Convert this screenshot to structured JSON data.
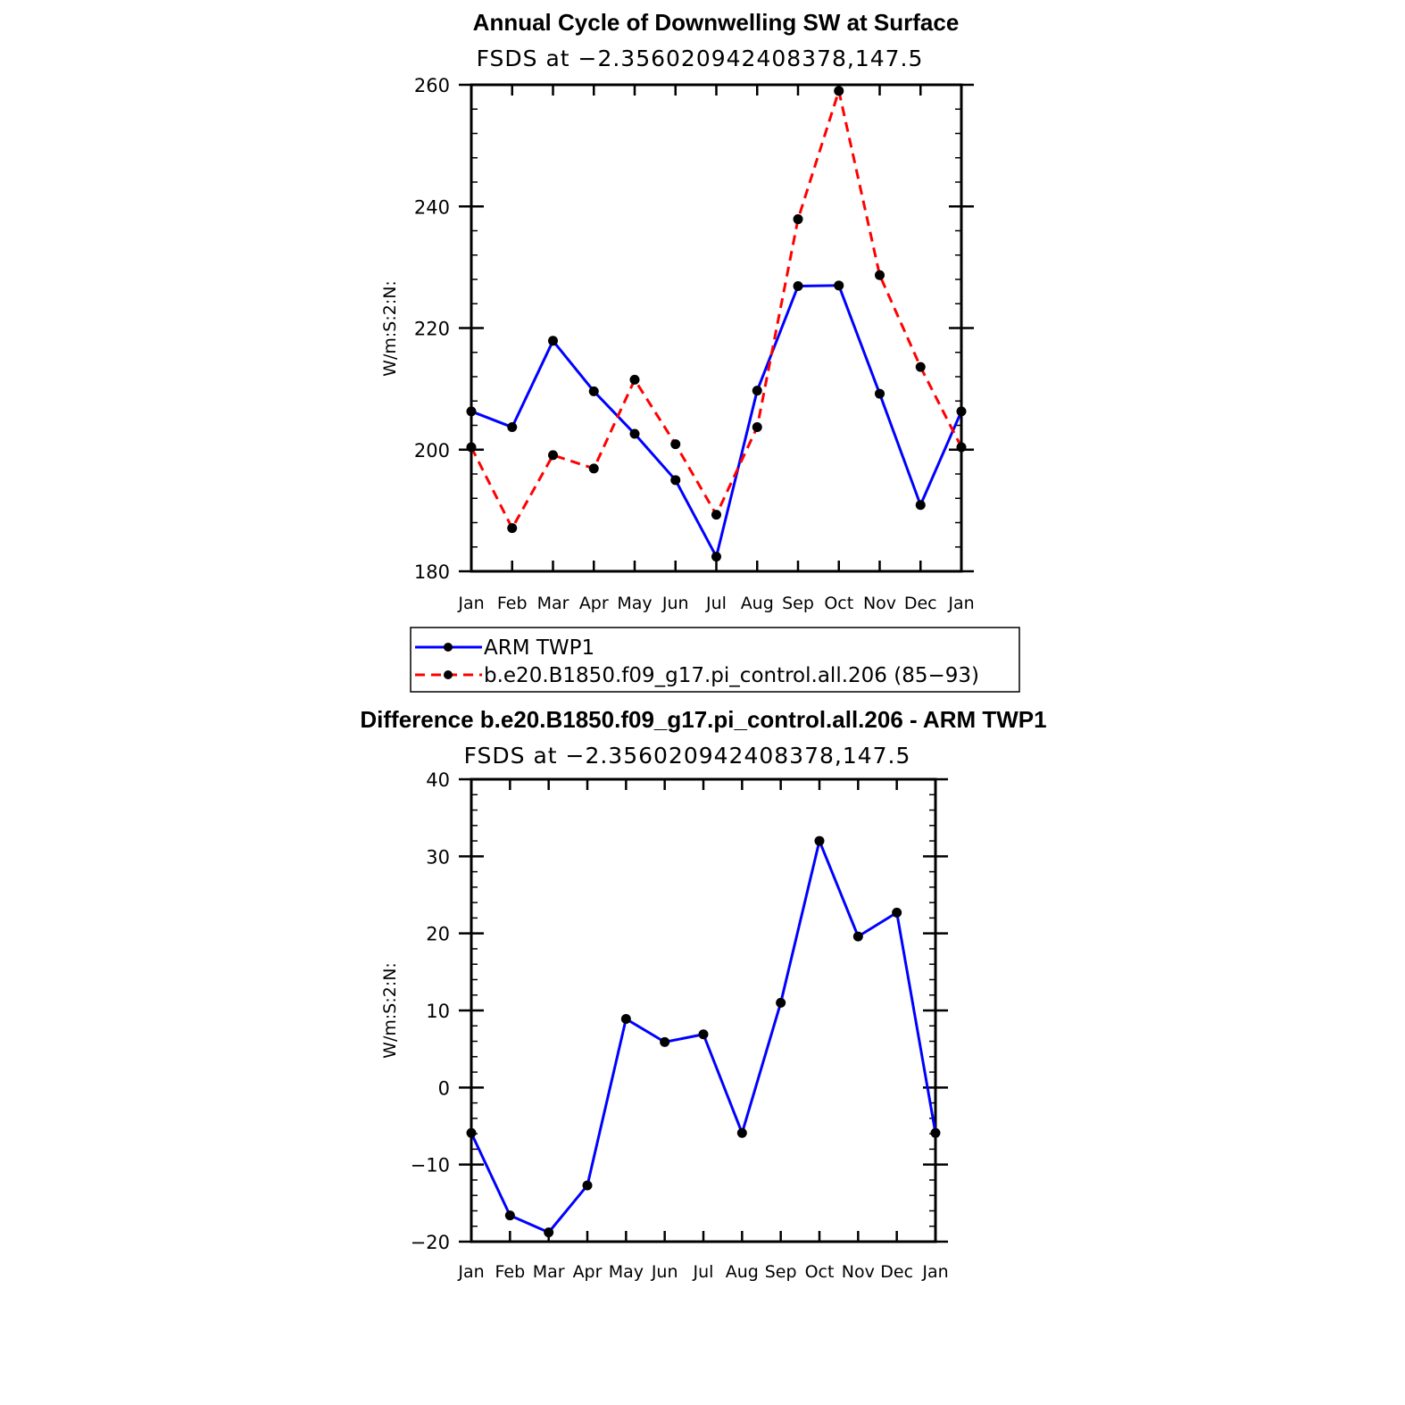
{
  "chart_data": [
    {
      "type": "line",
      "title": "Annual Cycle of Downwelling SW at Surface",
      "subtitle": "FSDS at −2.356020942408378,147.5",
      "xlabel": "",
      "ylabel": "W/m:S:2:N:",
      "categories": [
        "Jan",
        "Feb",
        "Mar",
        "Apr",
        "May",
        "Jun",
        "Jul",
        "Aug",
        "Sep",
        "Oct",
        "Nov",
        "Dec",
        "Jan"
      ],
      "ylim": [
        180,
        260
      ],
      "yticks": [
        "180",
        "200",
        "220",
        "240",
        "260"
      ],
      "series": [
        {
          "name": "ARM TWP1",
          "color": "#0000ff",
          "style": "solid",
          "values": [
            206.3,
            203.7,
            217.9,
            209.6,
            202.6,
            195.0,
            182.4,
            209.7,
            226.9,
            227.0,
            209.2,
            190.9,
            206.3
          ]
        },
        {
          "name": "b.e20.B1850.f09_g17.pi_control.all.206 (85−93)",
          "color": "#ff0000",
          "style": "dashed",
          "values": [
            200.4,
            187.1,
            199.1,
            196.9,
            211.5,
            200.9,
            189.3,
            203.7,
            237.9,
            259.0,
            228.7,
            213.6,
            200.4
          ]
        }
      ],
      "legend": "below"
    },
    {
      "type": "line",
      "title": "Difference b.e20.B1850.f09_g17.pi_control.all.206 - ARM TWP1",
      "subtitle": "FSDS at −2.356020942408378,147.5",
      "xlabel": "",
      "ylabel": "W/m:S:2:N:",
      "categories": [
        "Jan",
        "Feb",
        "Mar",
        "Apr",
        "May",
        "Jun",
        "Jul",
        "Aug",
        "Sep",
        "Oct",
        "Nov",
        "Dec",
        "Jan"
      ],
      "ylim": [
        -20,
        40
      ],
      "yticks": [
        "−20",
        "−10",
        "0",
        "10",
        "20",
        "30",
        "40"
      ],
      "series": [
        {
          "name": "Difference",
          "color": "#0000ff",
          "style": "solid",
          "values": [
            -5.9,
            -16.6,
            -18.8,
            -12.7,
            8.9,
            5.9,
            6.9,
            -5.9,
            11.0,
            32.0,
            19.6,
            22.7,
            -5.9
          ]
        }
      ]
    }
  ]
}
